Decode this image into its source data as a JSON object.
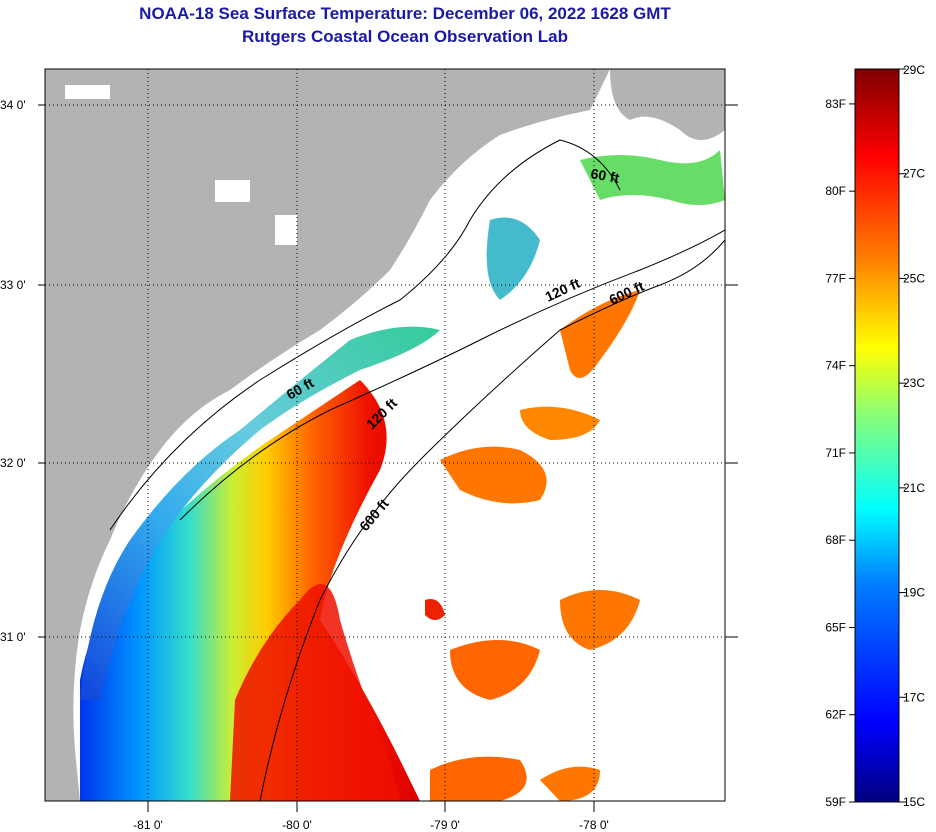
{
  "title": "NOAA-18 Sea Surface Temperature:  December 06, 2022 1628 GMT",
  "subtitle": "Rutgers Coastal Ocean Observation Lab",
  "map": {
    "lat_ticks": [
      "34 0'",
      "33 0'",
      "32 0'",
      "31 0'"
    ],
    "lon_ticks": [
      "-81 0'",
      "-80 0'",
      "-79 0'",
      "-78 0'"
    ],
    "depth_contours": [
      {
        "label": "60 ft"
      },
      {
        "label": "60 ft"
      },
      {
        "label": "120 ft"
      },
      {
        "label": "120 ft"
      },
      {
        "label": "600 ft"
      },
      {
        "label": "600 ft"
      }
    ],
    "land_color": "#b3b3b3",
    "cloud_color": "#ffffff"
  },
  "colorbar": {
    "range_c": [
      15,
      29
    ],
    "fahrenheit_labels": [
      "83F",
      "80F",
      "77F",
      "74F",
      "71F",
      "68F",
      "65F",
      "62F",
      "59F"
    ],
    "celsius_labels": [
      "29C",
      "27C",
      "25C",
      "23C",
      "21C",
      "19C",
      "17C",
      "15C"
    ],
    "colors": [
      "#000080",
      "#0000ff",
      "#0080ff",
      "#00ffff",
      "#80ff80",
      "#ffff00",
      "#ff8000",
      "#ff0000",
      "#800000"
    ]
  }
}
